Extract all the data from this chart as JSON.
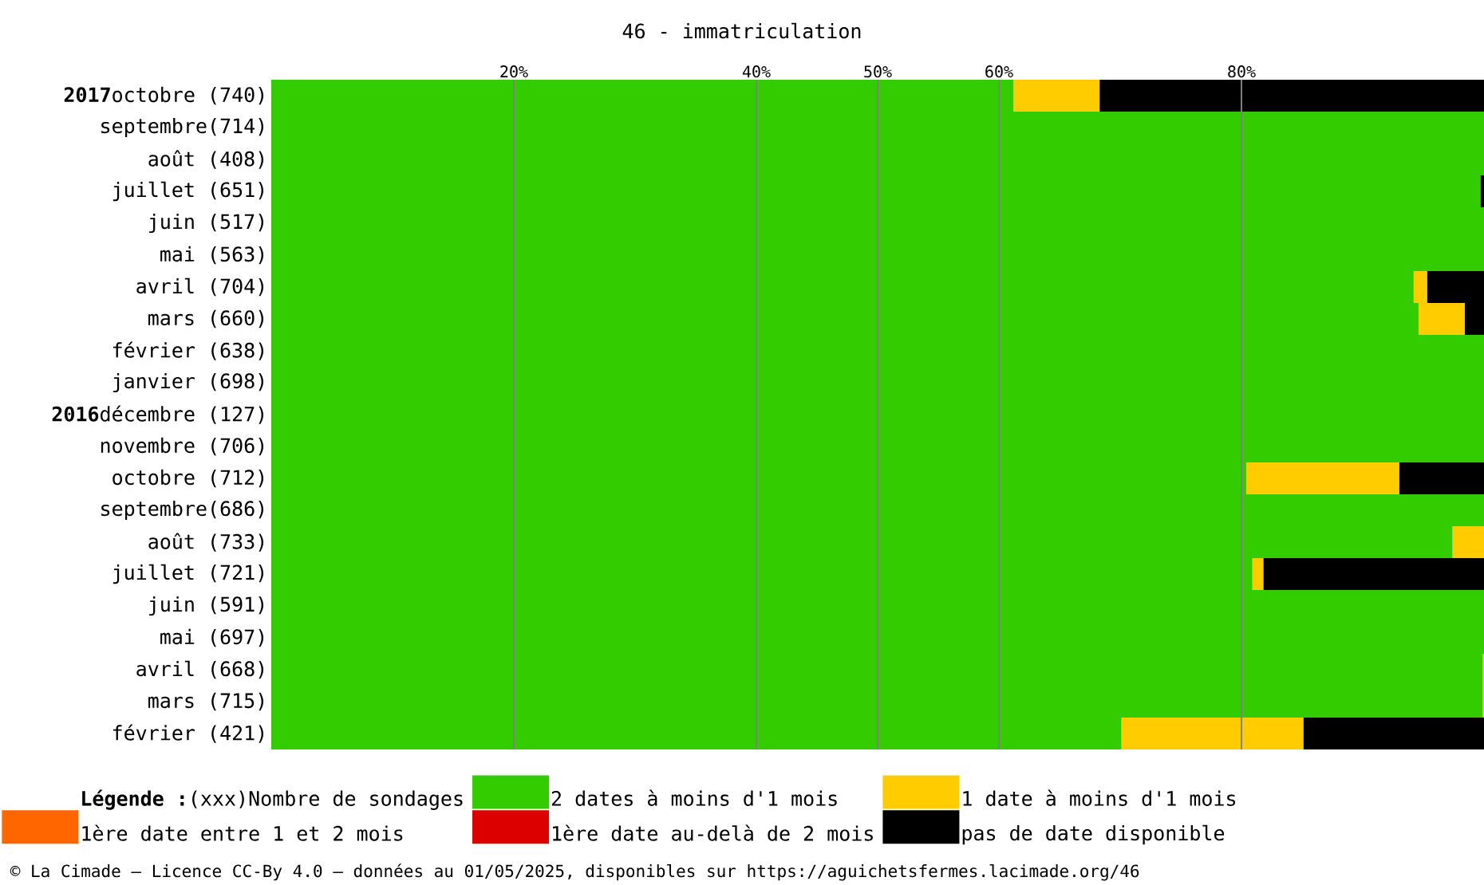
{
  "chart_data": {
    "type": "bar",
    "orientation": "horizontal",
    "stacked": true,
    "title": "46 - immatriculation",
    "categories": [
      "**2017**octobre (740)",
      "septembre(714)",
      "août (408)",
      "juillet (651)",
      "juin (517)",
      "mai (563)",
      "avril (704)",
      "mars (660)",
      "février (638)",
      "janvier (698)",
      "**2016**décembre (127)",
      "novembre (706)",
      "octobre (712)",
      "septembre(686)",
      "août (733)",
      "juillet (721)",
      "juin (591)",
      "mai (697)",
      "avril (668)",
      "mars (715)",
      "février (421)"
    ],
    "series": [
      {
        "name": "2 dates à moins d'1 mois",
        "color": "#33cc00",
        "values": [
          61.2,
          100,
          100,
          99.7,
          100,
          100,
          94.2,
          94.6,
          100,
          100,
          100,
          100,
          80.4,
          100,
          97.4,
          80.9,
          100,
          100,
          99.9,
          99.9,
          70.1
        ]
      },
      {
        "name": "1 date à moins d'1 mois",
        "color": "#ffcc00",
        "values": [
          7.1,
          0,
          0,
          0,
          0,
          0,
          1.1,
          3.8,
          0,
          0,
          0,
          0,
          12.6,
          0,
          2.6,
          0.9,
          0,
          0,
          0.1,
          0.1,
          15.0
        ]
      },
      {
        "name": "1ère date entre 1 et 2 mois",
        "color": "#ff6600",
        "values": [
          0,
          0,
          0,
          0,
          0,
          0,
          0,
          0,
          0,
          0,
          0,
          0,
          0,
          0,
          0,
          0,
          0,
          0,
          0,
          0,
          0
        ]
      },
      {
        "name": "1ère date au-delà de 2 mois",
        "color": "#dd0000",
        "values": [
          0,
          0,
          0,
          0,
          0,
          0,
          0,
          0,
          0,
          0,
          0,
          0,
          0,
          0,
          0,
          0,
          0,
          0,
          0,
          0,
          0
        ]
      },
      {
        "name": "pas de date disponible",
        "color": "#000000",
        "values": [
          31.7,
          0,
          0,
          0.3,
          0,
          0,
          4.7,
          1.6,
          0,
          0,
          0,
          0,
          7.0,
          0,
          0,
          18.2,
          0,
          0,
          0,
          0,
          14.9
        ]
      }
    ],
    "xlim": [
      0,
      100
    ],
    "xticks": [
      {
        "value": 20,
        "label": "20%"
      },
      {
        "value": 40,
        "label": "40%"
      },
      {
        "value": 50,
        "label": "50%"
      },
      {
        "value": 60,
        "label": "60%"
      },
      {
        "value": 80,
        "label": "80%"
      }
    ],
    "grid": "x",
    "legend": "bottom",
    "legend_title": "Légende :",
    "annotations": [
      "(xxx)Nombre de sondages",
      "© La Cimade — Licence CC-By 4.0 — données au 01/05/2025, disponibles sur https://aguichetsfermes.lacimade.org/46"
    ]
  }
}
